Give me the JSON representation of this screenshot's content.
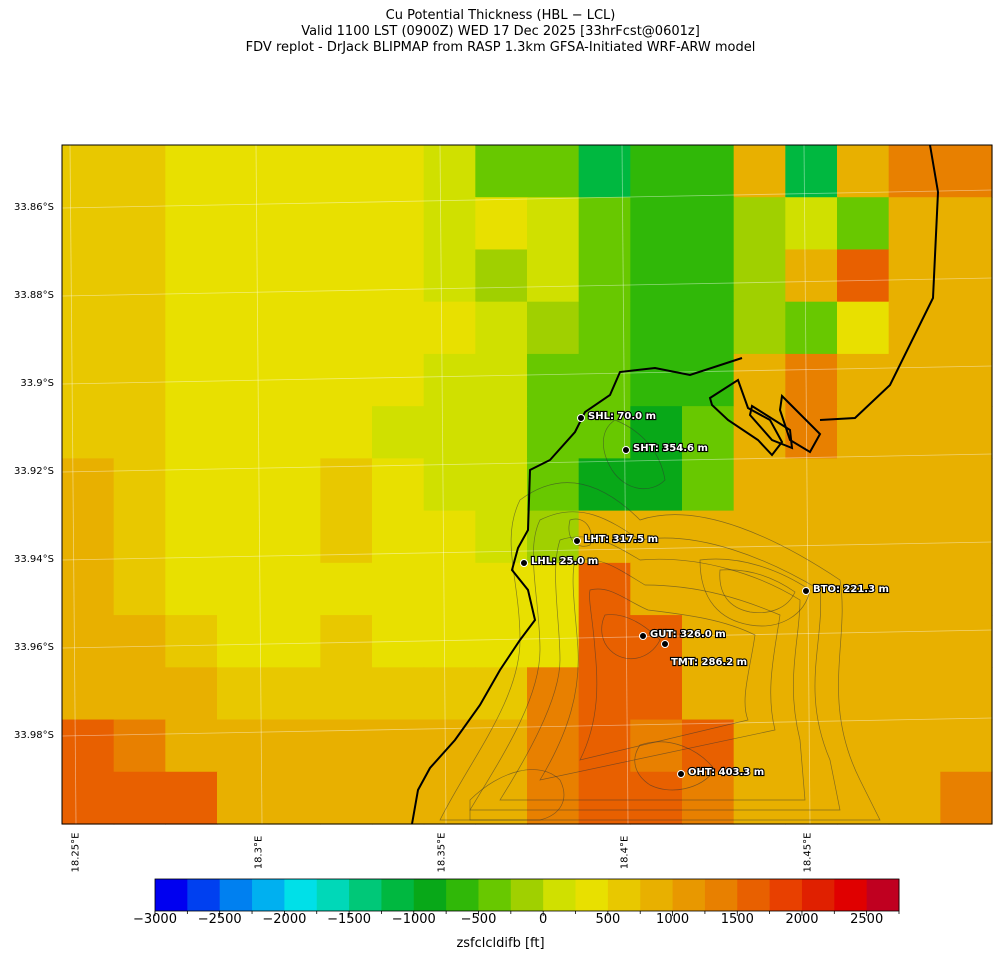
{
  "title": {
    "line1": "Cu Potential Thickness (HBL − LCL)",
    "line2": "Valid 1100 LST (0900Z) WED 17 Dec 2025 [33hrFcst@0601z]",
    "line3": "FDV replot - DrJack BLIPMAP from RASP 1.3km GFSA-Initiated WRF-ARW model"
  },
  "axes": {
    "lat_ticks": [
      "33.86°S",
      "33.88°S",
      "33.9°S",
      "33.92°S",
      "33.94°S",
      "33.96°S",
      "33.98°S"
    ],
    "lon_ticks": [
      "18.25°E",
      "18.3°E",
      "18.35°E",
      "18.4°E",
      "18.45°E"
    ]
  },
  "colorbar": {
    "label": "zsfclcldifb [ft]",
    "tick_labels": [
      "−3000",
      "−2500",
      "−2000",
      "−1500",
      "−1000",
      "−500",
      "0",
      "500",
      "1000",
      "1500",
      "2000",
      "2500"
    ],
    "tick_values": [
      -3000,
      -2500,
      -2000,
      -1500,
      -1000,
      -500,
      0,
      500,
      1000,
      1500,
      2000,
      2500
    ],
    "range": [
      -3000,
      2750
    ],
    "bin_width": 250,
    "colors": [
      "#0000f0",
      "#0040f0",
      "#0080f0",
      "#00b0f0",
      "#00e0e8",
      "#00d8b8",
      "#00c878",
      "#00b840",
      "#08a818",
      "#30b808",
      "#68c800",
      "#a0d000",
      "#d0e000",
      "#e8e000",
      "#e8c800",
      "#e8b000",
      "#e89800",
      "#e88000",
      "#e86000",
      "#e84000",
      "#e02000",
      "#e00000",
      "#c00020"
    ]
  },
  "stations": [
    {
      "code": "SHL",
      "label": "SHL: 70.0 m"
    },
    {
      "code": "SHT",
      "label": "SHT: 354.6 m"
    },
    {
      "code": "LHT",
      "label": "LHT: 317.5 m"
    },
    {
      "code": "LHL",
      "label": "LHL: 25.0 m"
    },
    {
      "code": "BTO",
      "label": "BTO: 221.3 m"
    },
    {
      "code": "GUT",
      "label": "GUT: 326.0 m"
    },
    {
      "code": "TMT",
      "label": "TMT: 286.2 m"
    },
    {
      "code": "OHT",
      "label": "OHT: 403.3 m"
    }
  ]
}
